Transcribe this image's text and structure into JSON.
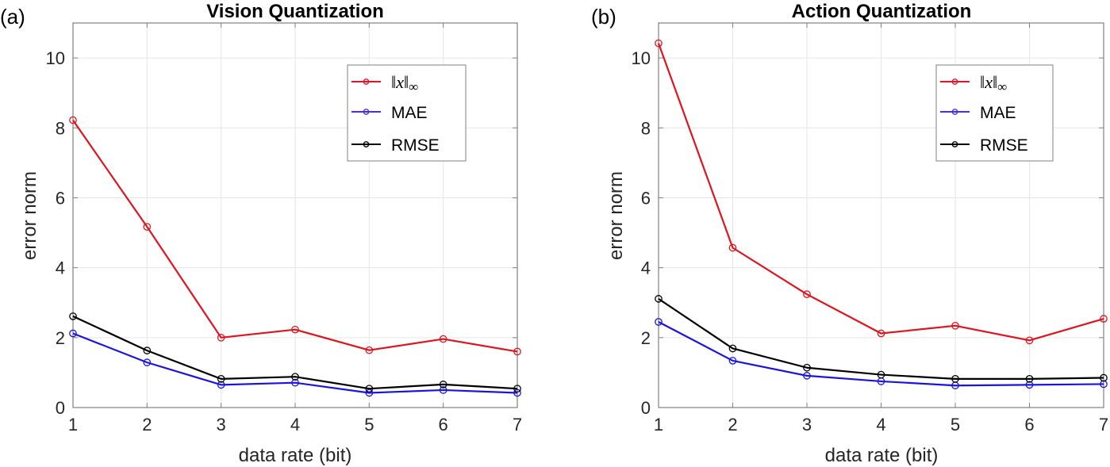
{
  "chart_data": [
    {
      "type": "line",
      "panel_label": "(a)",
      "title": "Vision Quantization",
      "xlabel": "data rate (bit)",
      "ylabel": "error norm",
      "x": [
        1,
        2,
        3,
        4,
        5,
        6,
        7
      ],
      "xlim": [
        1,
        7
      ],
      "ylim": [
        0,
        11
      ],
      "xticks": [
        "1",
        "2",
        "3",
        "4",
        "5",
        "6",
        "7"
      ],
      "yticks": [
        "0",
        "2",
        "4",
        "6",
        "8",
        "10"
      ],
      "ytick_values": [
        0,
        2,
        4,
        6,
        8,
        10
      ],
      "grid": true,
      "legend_position": "top-right",
      "series": [
        {
          "name": "||x||∞",
          "color": "#e0141e",
          "marker": "circle",
          "values": [
            8.22,
            5.17,
            2.0,
            2.23,
            1.64,
            1.96,
            1.6
          ]
        },
        {
          "name": "MAE",
          "color": "#1a14e0",
          "marker": "circle",
          "values": [
            2.12,
            1.29,
            0.65,
            0.71,
            0.42,
            0.5,
            0.42
          ]
        },
        {
          "name": "RMSE",
          "color": "#000000",
          "marker": "circle",
          "values": [
            2.61,
            1.63,
            0.82,
            0.88,
            0.54,
            0.66,
            0.54
          ]
        }
      ]
    },
    {
      "type": "line",
      "panel_label": "(b)",
      "title": "Action Quantization",
      "xlabel": "data rate (bit)",
      "ylabel": "error norm",
      "x": [
        1,
        2,
        3,
        4,
        5,
        6,
        7
      ],
      "xlim": [
        1,
        7
      ],
      "ylim": [
        0,
        11
      ],
      "xticks": [
        "1",
        "2",
        "3",
        "4",
        "5",
        "6",
        "7"
      ],
      "yticks": [
        "0",
        "2",
        "4",
        "6",
        "8",
        "10"
      ],
      "ytick_values": [
        0,
        2,
        4,
        6,
        8,
        10
      ],
      "grid": true,
      "legend_position": "top-right",
      "series": [
        {
          "name": "||x||∞",
          "color": "#e0141e",
          "marker": "circle",
          "values": [
            10.42,
            4.57,
            3.24,
            2.12,
            2.34,
            1.92,
            2.54
          ]
        },
        {
          "name": "MAE",
          "color": "#1a14e0",
          "marker": "circle",
          "values": [
            2.45,
            1.34,
            0.91,
            0.75,
            0.63,
            0.65,
            0.67
          ]
        },
        {
          "name": "RMSE",
          "color": "#000000",
          "marker": "circle",
          "values": [
            3.11,
            1.69,
            1.14,
            0.94,
            0.82,
            0.82,
            0.85
          ]
        }
      ]
    }
  ],
  "legend_labels": {
    "inf_norm_var": "x",
    "inf_norm_sub": "∞",
    "mae": "MAE",
    "rmse": "RMSE"
  }
}
